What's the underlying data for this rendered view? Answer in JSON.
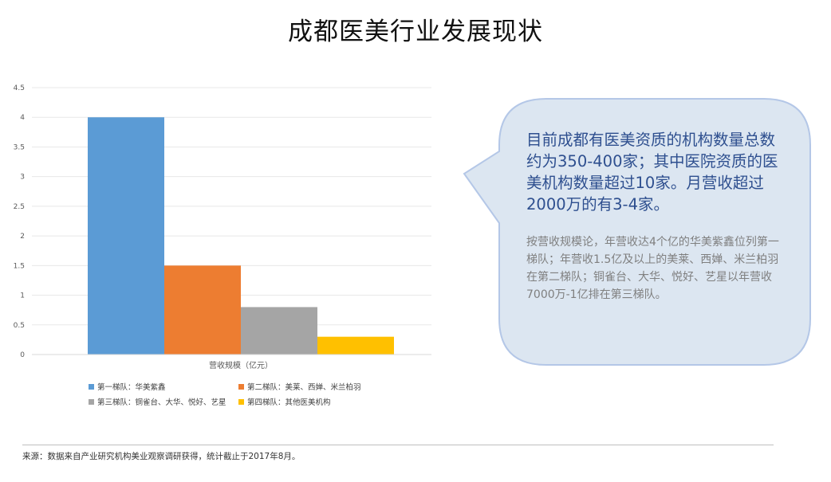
{
  "page": {
    "title": "成都医美行业发展现状",
    "source": "来源：数据来自产业研究机构美业观察调研获得，统计截止于2017年8月。"
  },
  "callout": {
    "main": "目前成都有医美资质的机构数量总数约为350-400家；其中医院资质的医美机构数量超过10家。月营收超过2000万的有3-4家。",
    "sub": "按营收规模论，年营收达4个亿的华美紫鑫位列第一梯队；年营收1.5亿及以上的美莱、西婵、米兰柏羽在第二梯队；铜雀台、大华、悦好、艺星以年营收7000万-1亿排在第三梯队。",
    "fill": "#dce6f1",
    "stroke": "#b4c7e7"
  },
  "chart_data": {
    "type": "bar",
    "categories": [
      "营收规模（亿元）"
    ],
    "xlabel": "营收规模（亿元）",
    "ylim": [
      0,
      4.5
    ],
    "yticks": [
      "0",
      "0.5",
      "1",
      "1.5",
      "2",
      "2.5",
      "3",
      "3.5",
      "4",
      "4.5"
    ],
    "grid": true,
    "legend": "bottom",
    "series": [
      {
        "name": "第一梯队：华美紫鑫",
        "values": [
          4.0
        ],
        "color": "#5b9bd5"
      },
      {
        "name": "第二梯队：美莱、西婵、米兰柏羽",
        "values": [
          1.5
        ],
        "color": "#ed7d31"
      },
      {
        "name": "第三梯队：铜雀台、大华、悦好、艺星",
        "values": [
          0.8
        ],
        "color": "#a5a5a5"
      },
      {
        "name": "第四梯队：其他医美机构",
        "values": [
          0.3
        ],
        "color": "#ffc000"
      }
    ]
  }
}
